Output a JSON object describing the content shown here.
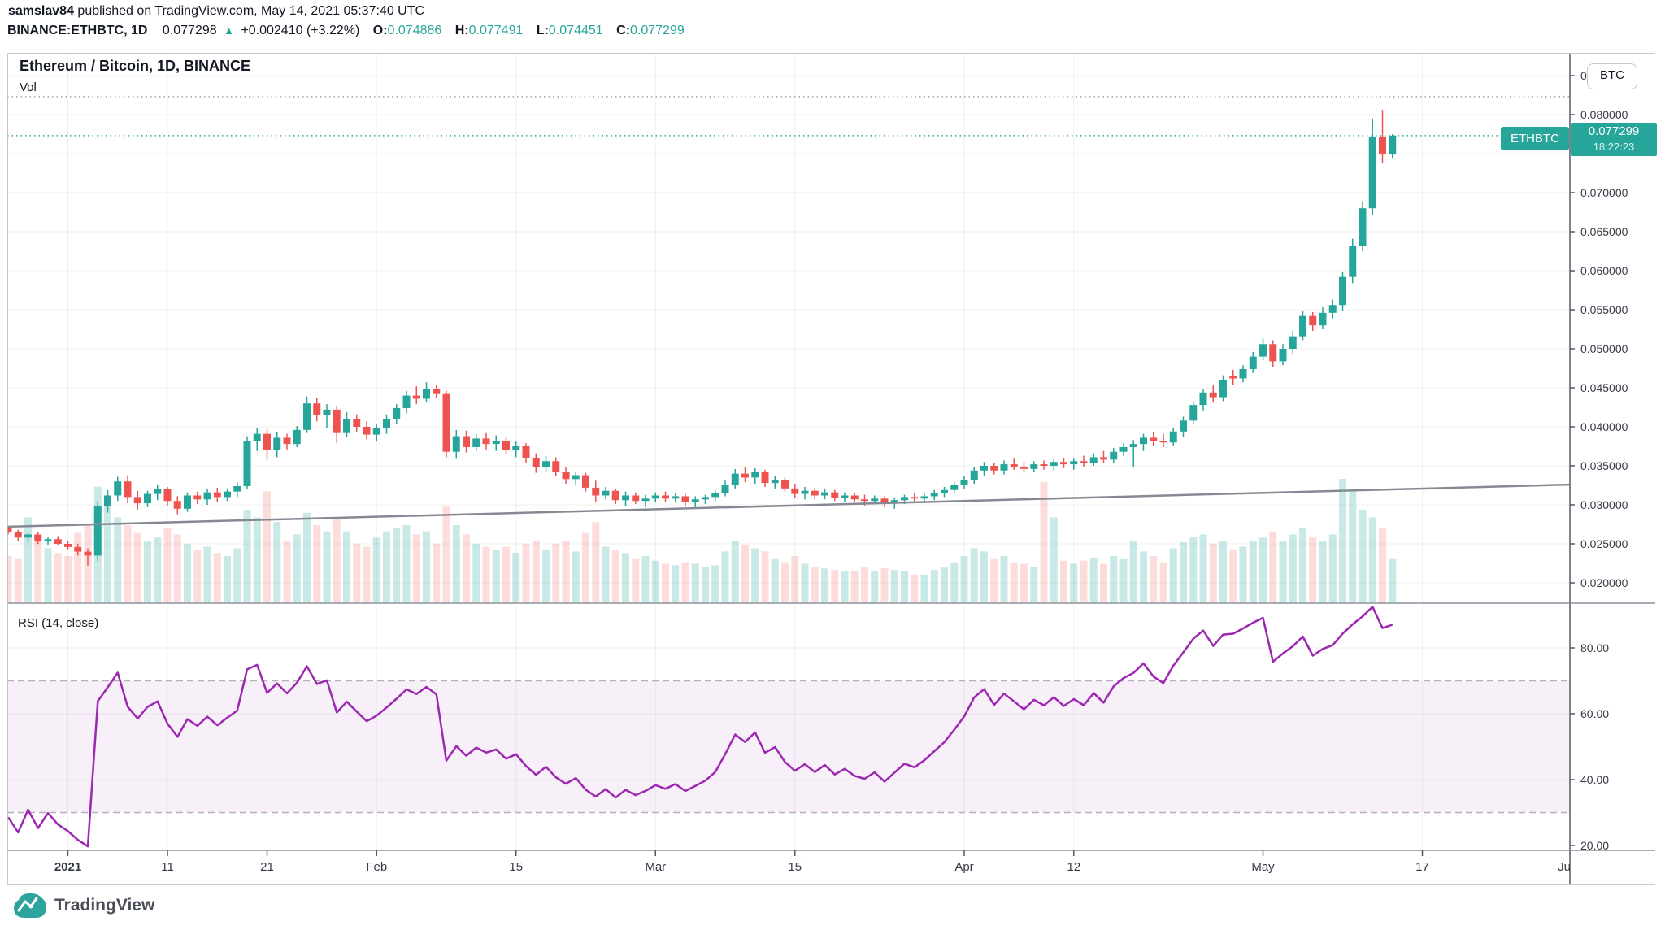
{
  "header": {
    "byline_user": "samslav84",
    "byline_rest": " published on TradingView.com, May 14, 2021 05:37:40 UTC",
    "symbol_line": {
      "symbol": "BINANCE:ETHBTC, 1D",
      "last": "0.077298",
      "up_arrow": "▲",
      "change": "+0.002410 (+3.22%)",
      "o_label": "O:",
      "o_value": "0.074886",
      "h_label": "H:",
      "h_value": "0.077491",
      "l_label": "L:",
      "l_value": "0.074451",
      "c_label": "C:",
      "c_value": "0.077299"
    }
  },
  "chart": {
    "title": "Ethereum / Bitcoin, 1D, BINANCE",
    "vol_label": "Vol",
    "rsi_label": "RSI (14, close)",
    "symbol_tag": "ETHBTC",
    "price_badge": {
      "price": "0.077299",
      "countdown": "18:22:23"
    },
    "btc_button": "BTC"
  },
  "axes": {
    "price_ticks": [
      "0.085000",
      "0.080000",
      "0.070000",
      "0.065000",
      "0.060000",
      "0.055000",
      "0.050000",
      "0.045000",
      "0.040000",
      "0.035000",
      "0.030000",
      "0.025000",
      "0.020000"
    ],
    "rsi_ticks": [
      "80.00",
      "60.00",
      "40.00",
      "20.00"
    ],
    "time_ticks": [
      {
        "label": "2021",
        "date": "2021-01-01",
        "bold": true
      },
      {
        "label": "11",
        "date": "2021-01-11"
      },
      {
        "label": "21",
        "date": "2021-01-21"
      },
      {
        "label": "Feb",
        "date": "2021-02-01"
      },
      {
        "label": "15",
        "date": "2021-02-15"
      },
      {
        "label": "Mar",
        "date": "2021-03-01"
      },
      {
        "label": "15",
        "date": "2021-03-15"
      },
      {
        "label": "Apr",
        "date": "2021-04-01"
      },
      {
        "label": "12",
        "date": "2021-04-12"
      },
      {
        "label": "May",
        "date": "2021-05-01"
      },
      {
        "label": "17",
        "date": "2021-05-17"
      },
      {
        "label": "Ju",
        "date": "2021-06-01",
        "clipped": true
      }
    ]
  },
  "footer": {
    "brand": "TradingView"
  },
  "chart_data": {
    "type": "candlestick",
    "symbol": "BINANCE:ETHBTC",
    "interval": "1D",
    "title": "Ethereum / Bitcoin, 1D, BINANCE",
    "start_date": "2020-12-26",
    "current_price": 0.077299,
    "level_line_price": 0.0823,
    "price_axis": {
      "min": 0.02,
      "max": 0.085,
      "label_step": 0.005,
      "grid_step": 0.005
    },
    "rsi_axis": {
      "min": 20,
      "max": 80,
      "step": 20
    },
    "rsi": {
      "length": 14,
      "source": "close",
      "overbought": 70,
      "oversold": 30,
      "seed_avg_gain": 8e-05,
      "seed_avg_loss": 0.0002
    },
    "trendline": {
      "start_date": "2020-12-26",
      "start_price": 0.0272,
      "end_date": "2021-06-01",
      "end_price": 0.0326
    },
    "colors": {
      "up": "#26a69a",
      "down": "#ef5350",
      "vol_up": "rgba(38,166,154,0.25)",
      "vol_down": "rgba(239,83,80,0.20)",
      "rsi_line": "#9c27b0",
      "rsi_band": "rgba(156,39,176,0.07)",
      "rsi_band_border": "#b5aebc",
      "trend": "#868993",
      "grid": "rgba(42,46,57,0.07)",
      "frame": "#b2b5be",
      "badge": "#26a69a",
      "text": "#363a45"
    },
    "candles": [
      [
        "2020-12-26",
        0.027,
        0.0273,
        0.0262,
        0.0265,
        0.3
      ],
      [
        "2020-12-27",
        0.0265,
        0.0268,
        0.0254,
        0.0258,
        0.28
      ],
      [
        "2020-12-28",
        0.0258,
        0.0264,
        0.0252,
        0.0262,
        0.55
      ],
      [
        "2020-12-29",
        0.0262,
        0.0265,
        0.025,
        0.0253,
        0.42
      ],
      [
        "2020-12-30",
        0.0253,
        0.0259,
        0.0248,
        0.0256,
        0.35
      ],
      [
        "2020-12-31",
        0.0256,
        0.026,
        0.0248,
        0.025,
        0.32
      ],
      [
        "2021-01-01",
        0.025,
        0.0254,
        0.0243,
        0.0246,
        0.3
      ],
      [
        "2021-01-02",
        0.0246,
        0.025,
        0.0235,
        0.024,
        0.45
      ],
      [
        "2021-01-03",
        0.024,
        0.0244,
        0.0222,
        0.0235,
        0.5
      ],
      [
        "2021-01-04",
        0.0235,
        0.0305,
        0.0228,
        0.0298,
        0.75
      ],
      [
        "2021-01-05",
        0.0298,
        0.0319,
        0.029,
        0.0312,
        0.65
      ],
      [
        "2021-01-06",
        0.0312,
        0.0336,
        0.0305,
        0.033,
        0.55
      ],
      [
        "2021-01-07",
        0.033,
        0.0338,
        0.0302,
        0.031,
        0.5
      ],
      [
        "2021-01-08",
        0.031,
        0.0318,
        0.0294,
        0.0302,
        0.45
      ],
      [
        "2021-01-09",
        0.0302,
        0.0318,
        0.0297,
        0.0314,
        0.4
      ],
      [
        "2021-01-10",
        0.0314,
        0.0326,
        0.0306,
        0.032,
        0.42
      ],
      [
        "2021-01-11",
        0.032,
        0.0323,
        0.0298,
        0.0305,
        0.48
      ],
      [
        "2021-01-12",
        0.0305,
        0.0311,
        0.0288,
        0.0295,
        0.44
      ],
      [
        "2021-01-13",
        0.0295,
        0.0316,
        0.0291,
        0.0312,
        0.38
      ],
      [
        "2021-01-14",
        0.0312,
        0.0317,
        0.0301,
        0.0307,
        0.34
      ],
      [
        "2021-01-15",
        0.0307,
        0.0321,
        0.03,
        0.0316,
        0.36
      ],
      [
        "2021-01-16",
        0.0316,
        0.0322,
        0.0304,
        0.031,
        0.32
      ],
      [
        "2021-01-17",
        0.031,
        0.0321,
        0.0305,
        0.0317,
        0.3
      ],
      [
        "2021-01-18",
        0.0317,
        0.0329,
        0.031,
        0.0324,
        0.35
      ],
      [
        "2021-01-19",
        0.0324,
        0.0388,
        0.032,
        0.0382,
        0.6
      ],
      [
        "2021-01-20",
        0.0382,
        0.0399,
        0.0369,
        0.0391,
        0.55
      ],
      [
        "2021-01-21",
        0.0391,
        0.0397,
        0.0358,
        0.037,
        0.72
      ],
      [
        "2021-01-22",
        0.037,
        0.0393,
        0.0361,
        0.0386,
        0.52
      ],
      [
        "2021-01-23",
        0.0386,
        0.0391,
        0.0371,
        0.0378,
        0.4
      ],
      [
        "2021-01-24",
        0.0378,
        0.0401,
        0.0374,
        0.0396,
        0.44
      ],
      [
        "2021-01-25",
        0.0396,
        0.0439,
        0.0392,
        0.043,
        0.58
      ],
      [
        "2021-01-26",
        0.043,
        0.0437,
        0.0407,
        0.0415,
        0.5
      ],
      [
        "2021-01-27",
        0.0415,
        0.0429,
        0.0398,
        0.0422,
        0.46
      ],
      [
        "2021-01-28",
        0.0422,
        0.0426,
        0.0379,
        0.0392,
        0.54
      ],
      [
        "2021-01-29",
        0.0392,
        0.0419,
        0.0387,
        0.041,
        0.46
      ],
      [
        "2021-01-30",
        0.041,
        0.0416,
        0.0394,
        0.04,
        0.38
      ],
      [
        "2021-01-31",
        0.04,
        0.0407,
        0.0384,
        0.039,
        0.36
      ],
      [
        "2021-02-01",
        0.039,
        0.0403,
        0.0381,
        0.0398,
        0.42
      ],
      [
        "2021-02-02",
        0.0398,
        0.0416,
        0.0391,
        0.041,
        0.46
      ],
      [
        "2021-02-03",
        0.041,
        0.0429,
        0.0404,
        0.0424,
        0.48
      ],
      [
        "2021-02-04",
        0.0424,
        0.0446,
        0.0417,
        0.044,
        0.5
      ],
      [
        "2021-02-05",
        0.044,
        0.0452,
        0.0429,
        0.0436,
        0.44
      ],
      [
        "2021-02-06",
        0.0436,
        0.0457,
        0.0431,
        0.0448,
        0.46
      ],
      [
        "2021-02-07",
        0.0448,
        0.0454,
        0.0437,
        0.0442,
        0.38
      ],
      [
        "2021-02-08",
        0.0442,
        0.0446,
        0.0361,
        0.0368,
        0.62
      ],
      [
        "2021-02-09",
        0.0368,
        0.0396,
        0.0359,
        0.0388,
        0.5
      ],
      [
        "2021-02-10",
        0.0388,
        0.0395,
        0.0367,
        0.0374,
        0.44
      ],
      [
        "2021-02-11",
        0.0374,
        0.0391,
        0.0369,
        0.0385,
        0.38
      ],
      [
        "2021-02-12",
        0.0385,
        0.0392,
        0.0371,
        0.0378,
        0.36
      ],
      [
        "2021-02-13",
        0.0378,
        0.0389,
        0.0369,
        0.0382,
        0.34
      ],
      [
        "2021-02-14",
        0.0382,
        0.0386,
        0.0365,
        0.037,
        0.36
      ],
      [
        "2021-02-15",
        0.037,
        0.0381,
        0.0361,
        0.0375,
        0.32
      ],
      [
        "2021-02-16",
        0.0375,
        0.0379,
        0.0354,
        0.036,
        0.38
      ],
      [
        "2021-02-17",
        0.036,
        0.0366,
        0.0341,
        0.0348,
        0.4
      ],
      [
        "2021-02-18",
        0.0348,
        0.0363,
        0.0343,
        0.0356,
        0.34
      ],
      [
        "2021-02-19",
        0.0356,
        0.0361,
        0.0337,
        0.0342,
        0.38
      ],
      [
        "2021-02-20",
        0.0342,
        0.0349,
        0.0327,
        0.0333,
        0.4
      ],
      [
        "2021-02-21",
        0.0333,
        0.0343,
        0.0325,
        0.0338,
        0.33
      ],
      [
        "2021-02-22",
        0.0338,
        0.0341,
        0.0317,
        0.0322,
        0.45
      ],
      [
        "2021-02-23",
        0.0322,
        0.0331,
        0.0304,
        0.0312,
        0.52
      ],
      [
        "2021-02-24",
        0.0312,
        0.0323,
        0.0307,
        0.0318,
        0.36
      ],
      [
        "2021-02-25",
        0.0318,
        0.0321,
        0.0301,
        0.0306,
        0.34
      ],
      [
        "2021-02-26",
        0.0306,
        0.0317,
        0.0299,
        0.0312,
        0.32
      ],
      [
        "2021-02-27",
        0.0312,
        0.0316,
        0.0301,
        0.0305,
        0.28
      ],
      [
        "2021-02-28",
        0.0305,
        0.0313,
        0.0297,
        0.0308,
        0.3
      ],
      [
        "2021-03-01",
        0.0308,
        0.0316,
        0.0303,
        0.0312,
        0.27
      ],
      [
        "2021-03-02",
        0.0312,
        0.0317,
        0.0304,
        0.0308,
        0.25
      ],
      [
        "2021-03-03",
        0.0308,
        0.0315,
        0.0303,
        0.0311,
        0.24
      ],
      [
        "2021-03-04",
        0.0311,
        0.0314,
        0.0299,
        0.0304,
        0.26
      ],
      [
        "2021-03-05",
        0.0304,
        0.0311,
        0.0297,
        0.0307,
        0.25
      ],
      [
        "2021-03-06",
        0.0307,
        0.0313,
        0.0301,
        0.031,
        0.23
      ],
      [
        "2021-03-07",
        0.031,
        0.0319,
        0.0305,
        0.0315,
        0.24
      ],
      [
        "2021-03-08",
        0.0315,
        0.0331,
        0.0311,
        0.0326,
        0.33
      ],
      [
        "2021-03-09",
        0.0326,
        0.0346,
        0.0321,
        0.034,
        0.4
      ],
      [
        "2021-03-10",
        0.034,
        0.0349,
        0.0329,
        0.0335,
        0.37
      ],
      [
        "2021-03-11",
        0.0335,
        0.0347,
        0.0327,
        0.0342,
        0.35
      ],
      [
        "2021-03-12",
        0.0342,
        0.0345,
        0.0323,
        0.0328,
        0.33
      ],
      [
        "2021-03-13",
        0.0328,
        0.0337,
        0.0321,
        0.0332,
        0.28
      ],
      [
        "2021-03-14",
        0.0332,
        0.0335,
        0.0317,
        0.0321,
        0.26
      ],
      [
        "2021-03-15",
        0.0321,
        0.0327,
        0.0309,
        0.0314,
        0.3
      ],
      [
        "2021-03-16",
        0.0314,
        0.0323,
        0.0307,
        0.0318,
        0.25
      ],
      [
        "2021-03-17",
        0.0318,
        0.0322,
        0.0307,
        0.0312,
        0.23
      ],
      [
        "2021-03-18",
        0.0312,
        0.0321,
        0.0307,
        0.0316,
        0.22
      ],
      [
        "2021-03-19",
        0.0316,
        0.0319,
        0.0305,
        0.0309,
        0.21
      ],
      [
        "2021-03-20",
        0.0309,
        0.0316,
        0.0304,
        0.0312,
        0.2
      ],
      [
        "2021-03-21",
        0.0312,
        0.0315,
        0.0303,
        0.0307,
        0.2
      ],
      [
        "2021-03-22",
        0.0307,
        0.0313,
        0.0299,
        0.0305,
        0.23
      ],
      [
        "2021-03-23",
        0.0305,
        0.0312,
        0.0301,
        0.0308,
        0.2
      ],
      [
        "2021-03-24",
        0.0308,
        0.0311,
        0.0297,
        0.0302,
        0.22
      ],
      [
        "2021-03-25",
        0.0302,
        0.0309,
        0.0295,
        0.0306,
        0.21
      ],
      [
        "2021-03-26",
        0.0306,
        0.0313,
        0.0301,
        0.031,
        0.2
      ],
      [
        "2021-03-27",
        0.031,
        0.0315,
        0.0304,
        0.0308,
        0.18
      ],
      [
        "2021-03-28",
        0.0308,
        0.0314,
        0.0303,
        0.0311,
        0.18
      ],
      [
        "2021-03-29",
        0.0311,
        0.0319,
        0.0306,
        0.0315,
        0.21
      ],
      [
        "2021-03-30",
        0.0315,
        0.0323,
        0.031,
        0.0319,
        0.23
      ],
      [
        "2021-03-31",
        0.0319,
        0.0329,
        0.0314,
        0.0325,
        0.26
      ],
      [
        "2021-04-01",
        0.0325,
        0.0337,
        0.032,
        0.0332,
        0.3
      ],
      [
        "2021-04-02",
        0.0332,
        0.0349,
        0.0327,
        0.0344,
        0.35
      ],
      [
        "2021-04-03",
        0.0344,
        0.0355,
        0.0337,
        0.035,
        0.33
      ],
      [
        "2021-04-04",
        0.035,
        0.0354,
        0.0339,
        0.0344,
        0.28
      ],
      [
        "2021-04-05",
        0.0344,
        0.0357,
        0.0339,
        0.0352,
        0.3
      ],
      [
        "2021-04-06",
        0.0352,
        0.0359,
        0.0345,
        0.0349,
        0.26
      ],
      [
        "2021-04-07",
        0.0349,
        0.0355,
        0.0341,
        0.0346,
        0.25
      ],
      [
        "2021-04-08",
        0.0346,
        0.0356,
        0.0342,
        0.0352,
        0.23
      ],
      [
        "2021-04-09",
        0.0352,
        0.0357,
        0.0345,
        0.035,
        0.78
      ],
      [
        "2021-04-10",
        0.035,
        0.0359,
        0.0344,
        0.0355,
        0.55
      ],
      [
        "2021-04-11",
        0.0355,
        0.036,
        0.0347,
        0.0352,
        0.27
      ],
      [
        "2021-04-12",
        0.0352,
        0.0359,
        0.0345,
        0.0356,
        0.25
      ],
      [
        "2021-04-13",
        0.0356,
        0.0363,
        0.0349,
        0.0354,
        0.27
      ],
      [
        "2021-04-14",
        0.0354,
        0.0366,
        0.035,
        0.0361,
        0.29
      ],
      [
        "2021-04-15",
        0.0361,
        0.0369,
        0.0354,
        0.0358,
        0.25
      ],
      [
        "2021-04-16",
        0.0358,
        0.0373,
        0.0353,
        0.0368,
        0.3
      ],
      [
        "2021-04-17",
        0.0368,
        0.0379,
        0.0363,
        0.0374,
        0.28
      ],
      [
        "2021-04-18",
        0.0374,
        0.0383,
        0.0348,
        0.0378,
        0.4
      ],
      [
        "2021-04-19",
        0.0378,
        0.0391,
        0.0369,
        0.0386,
        0.33
      ],
      [
        "2021-04-20",
        0.0386,
        0.0393,
        0.0375,
        0.0382,
        0.3
      ],
      [
        "2021-04-21",
        0.0382,
        0.0391,
        0.0374,
        0.038,
        0.26
      ],
      [
        "2021-04-22",
        0.038,
        0.0399,
        0.0375,
        0.0394,
        0.35
      ],
      [
        "2021-04-23",
        0.0394,
        0.0413,
        0.0387,
        0.0408,
        0.39
      ],
      [
        "2021-04-24",
        0.0408,
        0.0433,
        0.0403,
        0.0428,
        0.42
      ],
      [
        "2021-04-25",
        0.0428,
        0.0449,
        0.0421,
        0.0444,
        0.44
      ],
      [
        "2021-04-26",
        0.0444,
        0.0453,
        0.0431,
        0.0438,
        0.38
      ],
      [
        "2021-04-27",
        0.0438,
        0.0466,
        0.0433,
        0.046,
        0.4
      ],
      [
        "2021-04-28",
        0.0465,
        0.0473,
        0.0454,
        0.0462,
        0.34
      ],
      [
        "2021-04-29",
        0.0462,
        0.0479,
        0.0457,
        0.0474,
        0.36
      ],
      [
        "2021-04-30",
        0.0474,
        0.0496,
        0.0469,
        0.049,
        0.4
      ],
      [
        "2021-05-01",
        0.049,
        0.0513,
        0.0485,
        0.0506,
        0.42
      ],
      [
        "2021-05-02",
        0.0506,
        0.0511,
        0.0477,
        0.0484,
        0.46
      ],
      [
        "2021-05-03",
        0.0484,
        0.0506,
        0.0479,
        0.05,
        0.4
      ],
      [
        "2021-05-04",
        0.05,
        0.0523,
        0.0494,
        0.0516,
        0.44
      ],
      [
        "2021-05-05",
        0.0516,
        0.0549,
        0.0511,
        0.0542,
        0.48
      ],
      [
        "2021-05-06",
        0.0542,
        0.0547,
        0.0523,
        0.053,
        0.42
      ],
      [
        "2021-05-07",
        0.053,
        0.0553,
        0.0525,
        0.0546,
        0.4
      ],
      [
        "2021-05-08",
        0.0546,
        0.0563,
        0.0539,
        0.0556,
        0.44
      ],
      [
        "2021-05-09",
        0.0556,
        0.0599,
        0.0549,
        0.0592,
        0.8
      ],
      [
        "2021-05-10",
        0.0592,
        0.0641,
        0.0584,
        0.0632,
        0.72
      ],
      [
        "2021-05-11",
        0.0632,
        0.0689,
        0.0625,
        0.068,
        0.6
      ],
      [
        "2021-05-12",
        0.068,
        0.0795,
        0.0671,
        0.0772,
        0.55
      ],
      [
        "2021-05-13",
        0.0772,
        0.0806,
        0.0738,
        0.0749,
        0.48
      ],
      [
        "2021-05-14",
        0.074886,
        0.077491,
        0.074451,
        0.077299,
        0.28
      ]
    ]
  }
}
